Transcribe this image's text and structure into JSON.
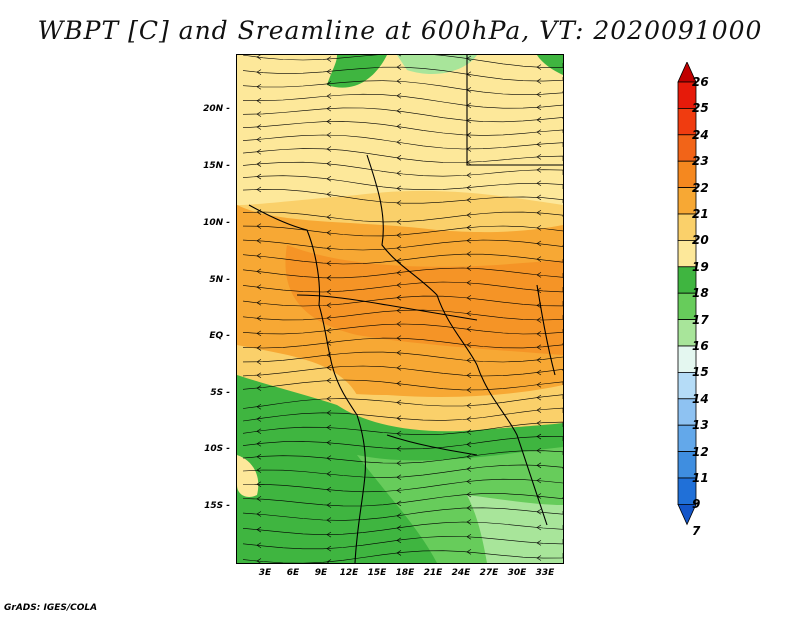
{
  "title": "WBPT [C] and Sreamline at 600hPa, VT: 2020091000",
  "credit": "GrADS: IGES/COLA",
  "lat_labels": [
    "20N",
    "15N",
    "10N",
    "5N",
    "EQ",
    "5S",
    "10S",
    "15S"
  ],
  "lon_labels": [
    "3E",
    "6E",
    "9E",
    "12E",
    "15E",
    "18E",
    "21E",
    "24E",
    "27E",
    "30E",
    "33E"
  ],
  "colorbar": {
    "labels": [
      "26",
      "25",
      "24",
      "23",
      "22",
      "21",
      "20",
      "19",
      "18",
      "17",
      "16",
      "15",
      "14",
      "13",
      "12",
      "11",
      "9",
      "7"
    ],
    "colors": [
      "#c00000",
      "#e61a0a",
      "#f03c10",
      "#f26418",
      "#f5881f",
      "#f7a834",
      "#fad06a",
      "#fde89a",
      "#3fb540",
      "#67cc5b",
      "#a8e59a",
      "#e4f7f0",
      "#b5dcf7",
      "#8ec2f2",
      "#63a8ea",
      "#3f8ee0",
      "#2070d8",
      "#1456c9"
    ]
  },
  "map": {
    "extent": {
      "lon_min": 0,
      "lon_max": 34,
      "lat_min": -20,
      "lat_max": 23
    },
    "field": "wet-bulb potential temperature",
    "overlay": "streamlines",
    "colors": {
      "orange": "#f5a030",
      "light_orange": "#fad06a",
      "pale_yellow": "#fde89a",
      "green": "#3fb540",
      "light_green": "#67cc5b",
      "pale_green": "#a8e59a"
    }
  }
}
